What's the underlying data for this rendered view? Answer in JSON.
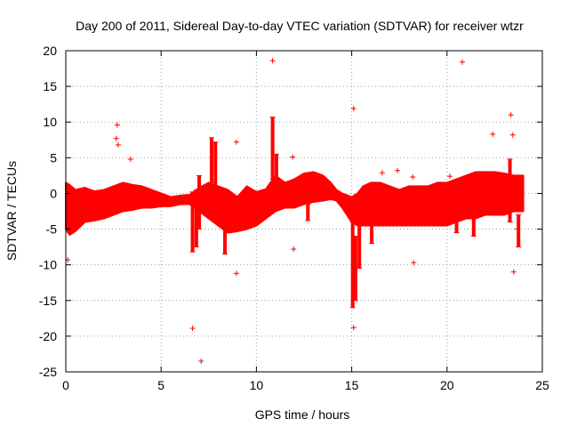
{
  "chart_data": {
    "type": "scatter",
    "title": "Day 200 of 2011, Sidereal Day-to-day VTEC variation (SDTVAR) for receiver wtzr",
    "xlabel": "GPS time / hours",
    "ylabel": "SDTVAR / TECUs",
    "xlim": [
      0,
      25
    ],
    "ylim": [
      -25,
      20
    ],
    "xticks": [
      0,
      5,
      10,
      15,
      20,
      25
    ],
    "xtick_labels": [
      "0",
      "5",
      "10",
      "15",
      "20",
      "25"
    ],
    "yticks": [
      -25,
      -20,
      -15,
      -10,
      -5,
      0,
      5,
      10,
      15,
      20
    ],
    "ytick_labels": [
      "-25",
      "-20",
      "-15",
      "-10",
      "-5",
      "0",
      "5",
      "10",
      "15",
      "20"
    ],
    "grid": true,
    "marker": "+",
    "color": "#ff0000",
    "band": {
      "x": [
        0,
        0.2,
        0.5,
        1,
        1.5,
        2,
        2.5,
        3,
        3.5,
        4,
        4.5,
        5,
        5.5,
        6,
        6.5,
        7,
        7.5,
        8,
        8.5,
        9,
        9.5,
        10,
        10.5,
        11,
        11.5,
        12,
        12.5,
        13,
        13.5,
        13.9,
        14.2,
        14.5,
        15,
        15.3,
        15.6,
        16,
        16.5,
        17,
        17.5,
        18,
        18.5,
        19,
        19.5,
        20,
        20.5,
        21,
        21.5,
        22,
        22.5,
        23,
        23.5,
        24
      ],
      "upper": [
        1.5,
        1.2,
        0.5,
        0.8,
        0.3,
        0.5,
        1.0,
        1.5,
        1.2,
        1.0,
        0.5,
        0.0,
        -0.5,
        -0.3,
        -0.2,
        0.8,
        1.5,
        1.0,
        0.5,
        -0.5,
        1.0,
        0.2,
        0.6,
        2.5,
        1.5,
        2.0,
        2.8,
        3.0,
        2.5,
        1.5,
        0.5,
        0.0,
        -0.5,
        0.0,
        1.0,
        1.5,
        1.5,
        1.0,
        0.5,
        1.0,
        1.0,
        1.0,
        1.5,
        1.5,
        2.0,
        2.5,
        3.0,
        3.0,
        3.0,
        2.8,
        2.5,
        2.5
      ],
      "lower": [
        -5.0,
        -5.8,
        -5.3,
        -4.0,
        -3.8,
        -3.5,
        -3.0,
        -2.5,
        -2.3,
        -2.0,
        -2.0,
        -1.8,
        -1.8,
        -1.5,
        -1.5,
        -2.5,
        -3.5,
        -4.5,
        -5.5,
        -5.3,
        -5.0,
        -4.5,
        -3.5,
        -2.5,
        -2.0,
        -2.0,
        -1.5,
        -1.2,
        -1.0,
        -0.8,
        -1.0,
        -2.0,
        -4.0,
        -4.5,
        -4.5,
        -4.5,
        -4.5,
        -4.5,
        -4.5,
        -4.5,
        -4.5,
        -4.5,
        -4.5,
        -4.5,
        -4.0,
        -3.5,
        -3.5,
        -3.0,
        -3.0,
        -3.0,
        -2.5,
        -2.5
      ]
    },
    "spikes": [
      {
        "x": 6.65,
        "low": -8.2,
        "high": 0.2
      },
      {
        "x": 6.85,
        "low": -7.5,
        "high": 0.5
      },
      {
        "x": 7.0,
        "low": -5.0,
        "high": 2.5
      },
      {
        "x": 7.65,
        "low": 1.5,
        "high": 7.8
      },
      {
        "x": 7.85,
        "low": 0.5,
        "high": 7.2
      },
      {
        "x": 8.35,
        "low": -8.5,
        "high": -3.0
      },
      {
        "x": 8.6,
        "low": -5.5,
        "high": -2.5
      },
      {
        "x": 10.85,
        "low": 2.0,
        "high": 10.7
      },
      {
        "x": 11.05,
        "low": 1.0,
        "high": 5.5
      },
      {
        "x": 12.7,
        "low": -3.8,
        "high": -1.5
      },
      {
        "x": 15.05,
        "low": -16.0,
        "high": -4.0
      },
      {
        "x": 15.2,
        "low": -15.0,
        "high": -6.0
      },
      {
        "x": 15.4,
        "low": -10.5,
        "high": -4.0
      },
      {
        "x": 16.05,
        "low": -7.0,
        "high": -4.5
      },
      {
        "x": 20.5,
        "low": -5.5,
        "high": -3.5
      },
      {
        "x": 21.4,
        "low": -6.0,
        "high": -3.0
      },
      {
        "x": 23.3,
        "low": -4.0,
        "high": 4.8
      },
      {
        "x": 23.75,
        "low": -7.5,
        "high": -3.0
      }
    ],
    "outliers": [
      {
        "x": 0.1,
        "y": -9.3
      },
      {
        "x": 2.7,
        "y": 9.6
      },
      {
        "x": 2.65,
        "y": 7.7
      },
      {
        "x": 2.75,
        "y": 6.8
      },
      {
        "x": 3.4,
        "y": 4.8
      },
      {
        "x": 6.65,
        "y": -18.9
      },
      {
        "x": 7.1,
        "y": -23.5
      },
      {
        "x": 8.95,
        "y": 7.2
      },
      {
        "x": 8.95,
        "y": -11.2
      },
      {
        "x": 10.85,
        "y": 18.6
      },
      {
        "x": 11.9,
        "y": 5.1
      },
      {
        "x": 11.95,
        "y": -7.8
      },
      {
        "x": 15.1,
        "y": 11.9
      },
      {
        "x": 15.1,
        "y": -18.8
      },
      {
        "x": 16.6,
        "y": 2.9
      },
      {
        "x": 17.4,
        "y": 3.2
      },
      {
        "x": 18.25,
        "y": -9.7
      },
      {
        "x": 18.2,
        "y": 2.3
      },
      {
        "x": 20.15,
        "y": 2.4
      },
      {
        "x": 20.8,
        "y": 18.4
      },
      {
        "x": 22.4,
        "y": 8.3
      },
      {
        "x": 23.35,
        "y": 11.0
      },
      {
        "x": 23.45,
        "y": 8.2
      },
      {
        "x": 23.5,
        "y": -11.0
      },
      {
        "x": 23.7,
        "y": -5.0
      }
    ]
  }
}
